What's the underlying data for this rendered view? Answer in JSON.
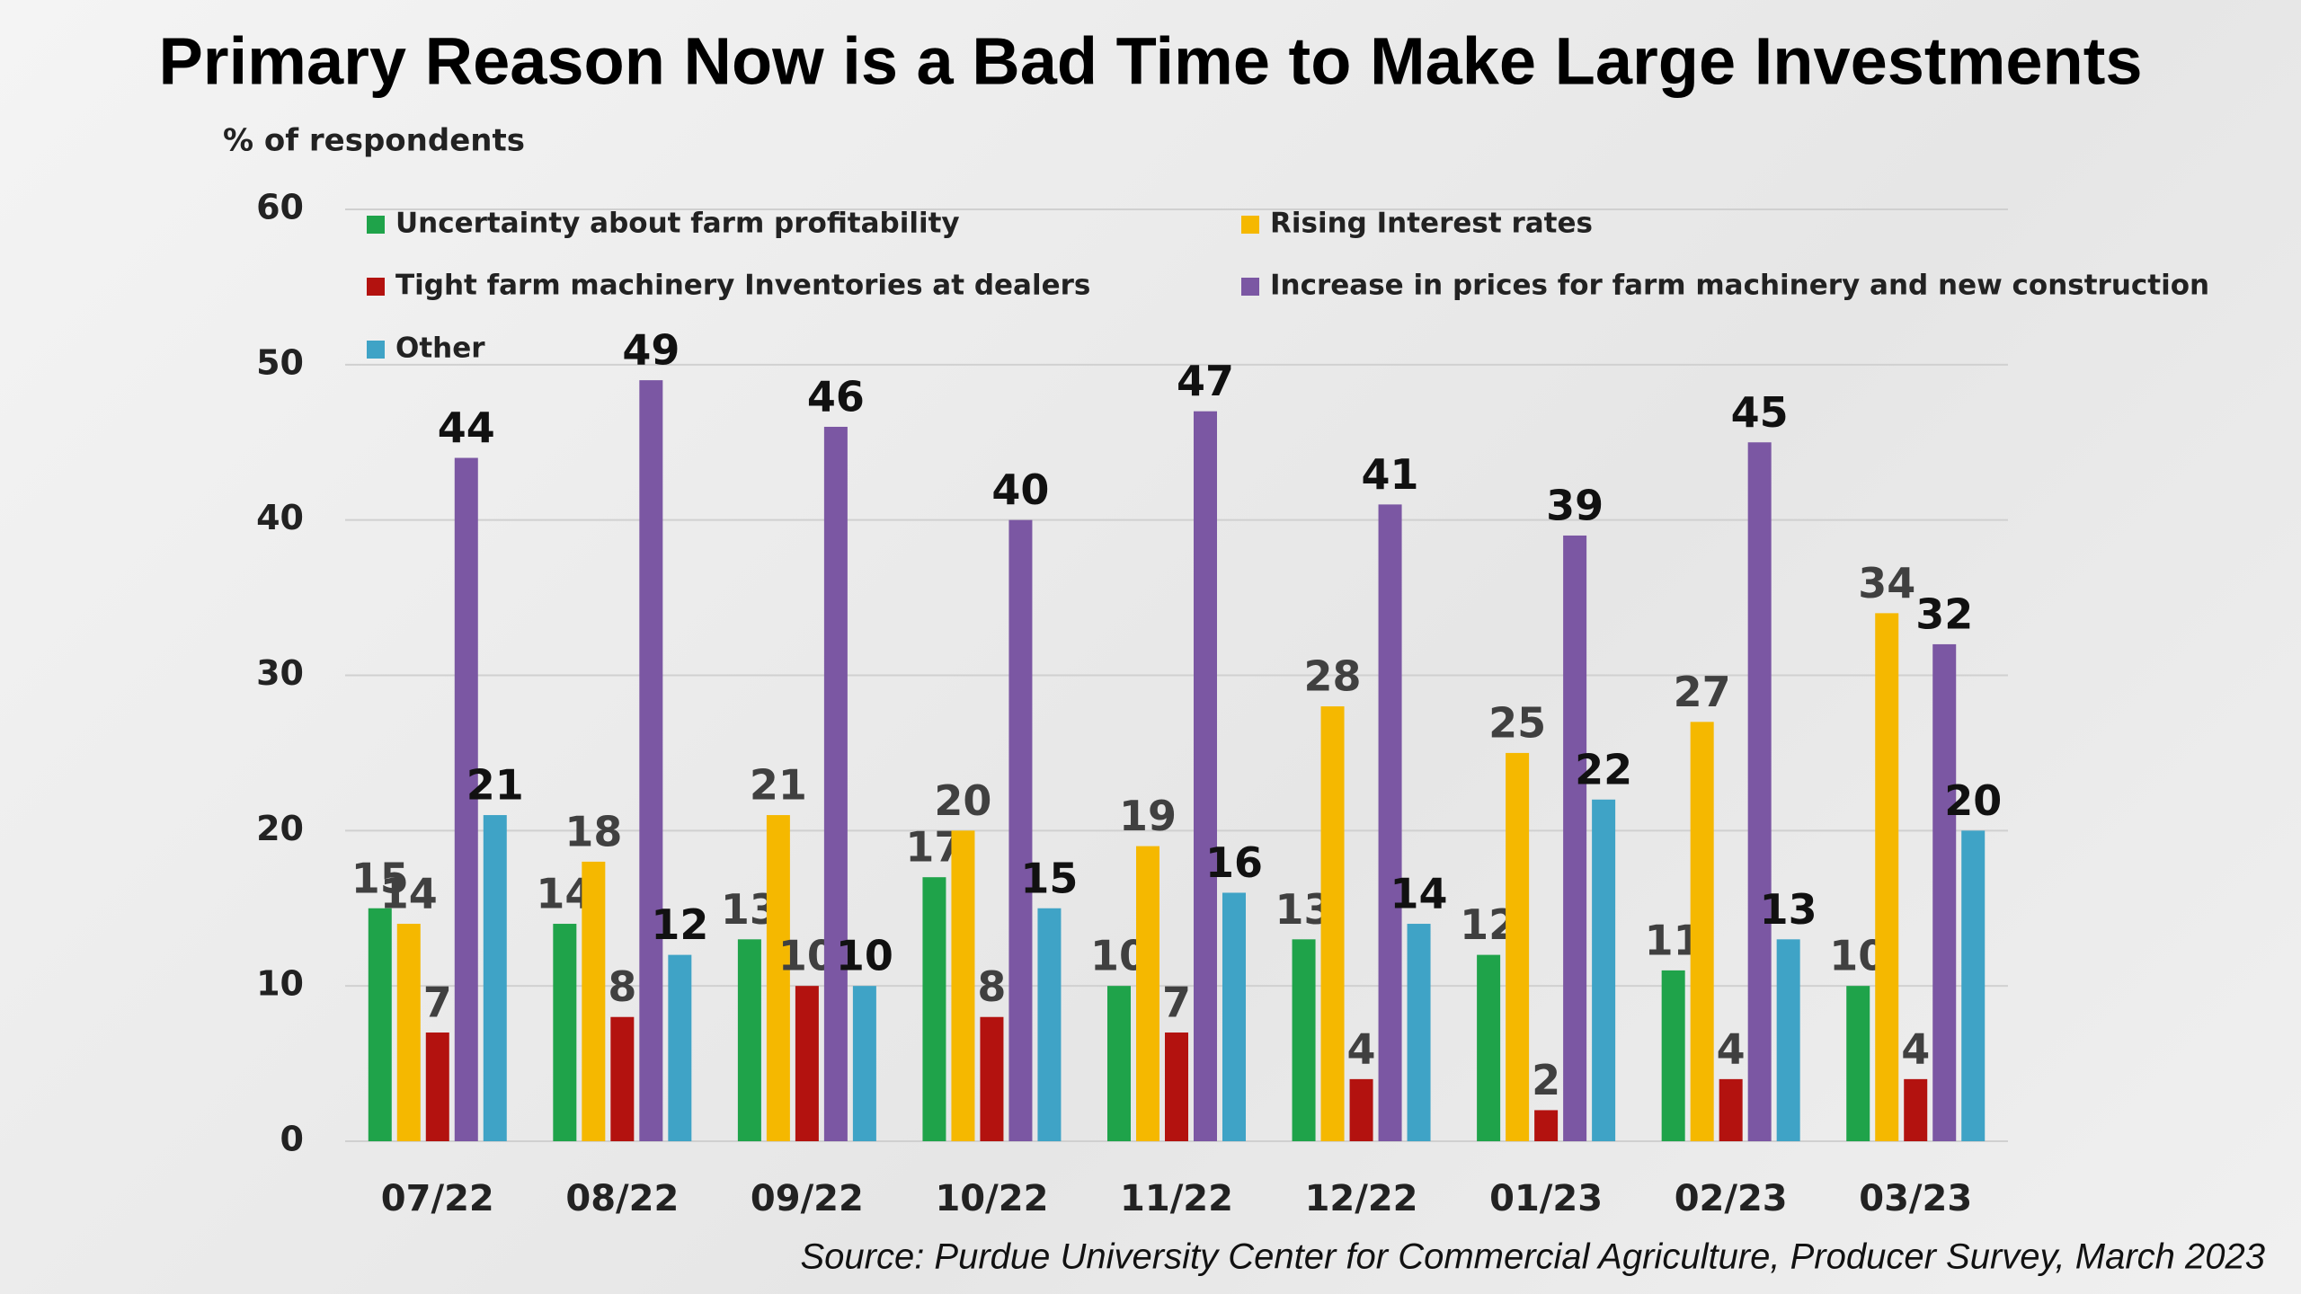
{
  "chart_data": {
    "type": "bar",
    "title": "Primary Reason Now is a Bad Time to Make Large Investments",
    "y_label": "% of respondents",
    "source": "Source: Purdue University Center for Commercial Agriculture, Producer Survey, March 2023",
    "categories": [
      "07/22",
      "08/22",
      "09/22",
      "10/22",
      "11/22",
      "12/22",
      "01/23",
      "02/23",
      "03/23"
    ],
    "series": [
      {
        "name": "Uncertainty about farm profitability",
        "color": "#1fa34a",
        "label_color": "#404040",
        "values": [
          15,
          14,
          13,
          17,
          10,
          13,
          12,
          11,
          10
        ]
      },
      {
        "name": "Rising Interest rates",
        "color": "#f5b800",
        "label_color": "#404040",
        "values": [
          14,
          18,
          21,
          20,
          19,
          28,
          25,
          27,
          34
        ]
      },
      {
        "name": "Tight farm machinery Inventories at dealers",
        "color": "#b3120f",
        "label_color": "#404040",
        "values": [
          7,
          8,
          10,
          8,
          7,
          4,
          2,
          4,
          4
        ]
      },
      {
        "name": "Increase in prices for farm machinery and new construction",
        "color": "#7b57a3",
        "label_color": "#111111",
        "values": [
          44,
          49,
          46,
          40,
          47,
          41,
          39,
          45,
          32
        ]
      },
      {
        "name": "Other",
        "color": "#3fa3c6",
        "label_color": "#111111",
        "values": [
          21,
          12,
          10,
          15,
          16,
          14,
          22,
          13,
          20
        ]
      }
    ],
    "ylim": [
      0,
      60
    ],
    "yticks": [
      0,
      10,
      20,
      30,
      40,
      50,
      60
    ],
    "grid": true
  }
}
